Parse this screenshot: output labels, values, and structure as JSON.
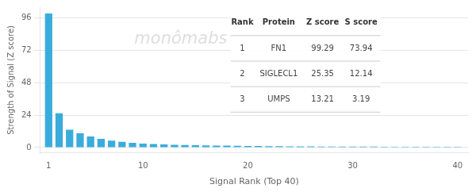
{
  "chart_data": {
    "type": "bar",
    "xlabel": "Signal Rank (Top 40)",
    "ylabel": "Strength of Signal (Z score)",
    "x": [
      1,
      2,
      3,
      4,
      5,
      6,
      7,
      8,
      9,
      10,
      11,
      12,
      13,
      14,
      15,
      16,
      17,
      18,
      19,
      20,
      21,
      22,
      23,
      24,
      25,
      26,
      27,
      28,
      29,
      30,
      31,
      32,
      33,
      34,
      35,
      36,
      37,
      38,
      39,
      40
    ],
    "values": [
      99.29,
      25.35,
      13.21,
      10.5,
      8.2,
      6.5,
      5.1,
      4.2,
      3.5,
      3.0,
      2.6,
      2.3,
      2.1,
      1.9,
      1.75,
      1.6,
      1.5,
      1.4,
      1.3,
      1.2,
      1.1,
      1.05,
      1.0,
      0.95,
      0.9,
      0.85,
      0.8,
      0.78,
      0.75,
      0.72,
      0.7,
      0.68,
      0.65,
      0.63,
      0.61,
      0.59,
      0.57,
      0.55,
      0.53,
      0.51
    ],
    "color": "#3aacdc",
    "xlim": [
      0.2,
      41
    ],
    "ylim": [
      -4,
      104
    ],
    "xticks": [
      1,
      10,
      20,
      30,
      40
    ],
    "yticks": [
      0,
      24,
      48,
      72,
      96
    ],
    "grid": "y",
    "annotations": [
      "monômabs"
    ],
    "table": {
      "headers": [
        "Rank",
        "Protein",
        "Z score",
        "S score"
      ],
      "rows": [
        [
          "1",
          "FN1",
          "99.29",
          "73.94"
        ],
        [
          "2",
          "SIGLECL1",
          "25.35",
          "12.14"
        ],
        [
          "3",
          "UMPS",
          "13.21",
          "3.19"
        ]
      ]
    }
  }
}
